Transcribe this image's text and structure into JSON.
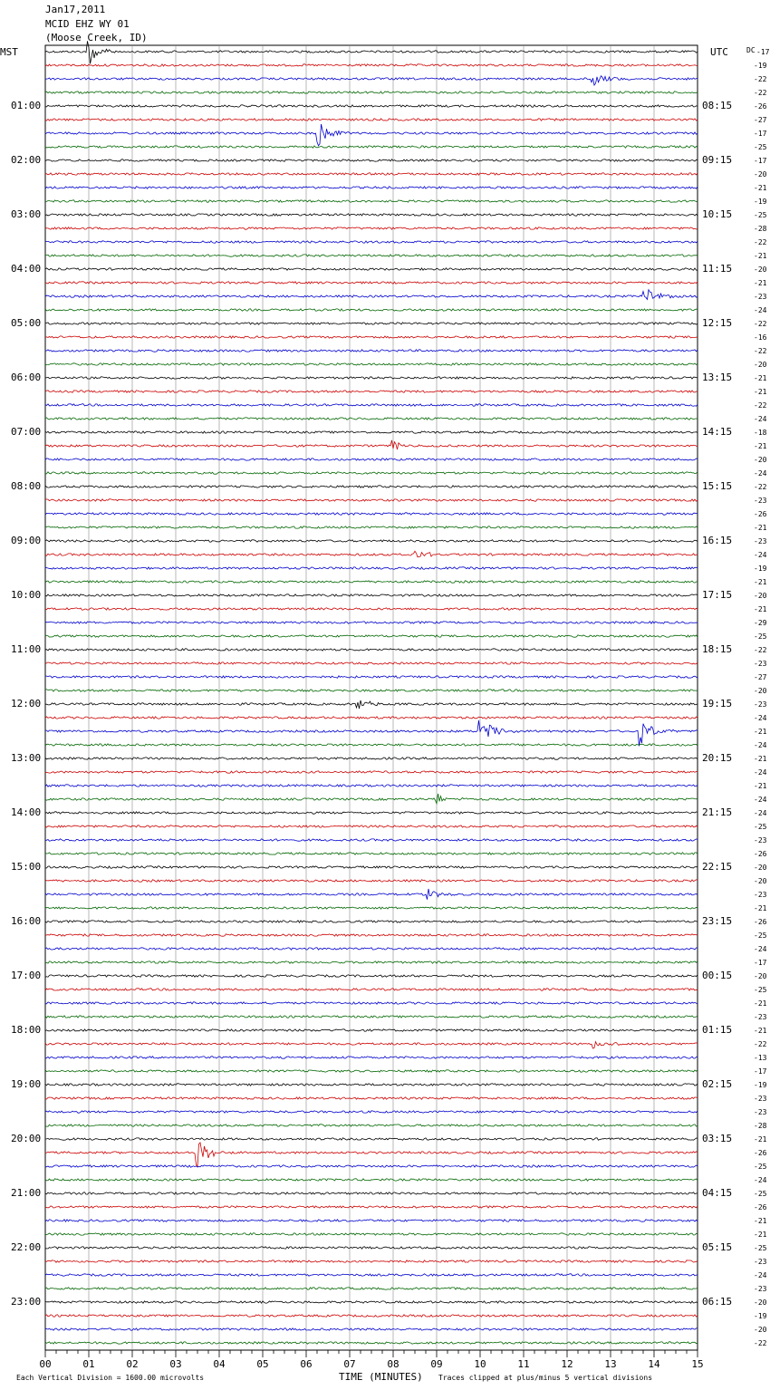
{
  "header": {
    "date": "Jan17,2011",
    "station": "MCID EHZ WY 01",
    "location": "(Moose Creek, ID)"
  },
  "left_axis_title": "MST",
  "right_axis_title": "UTC",
  "dc_title": "DC",
  "footer": {
    "scale_note": "Each Vertical Division = 1600.00 microvolts",
    "xlabel": "TIME (MINUTES)",
    "clip_note": "Traces clipped at plus/minus 5 vertical divisions"
  },
  "colors": {
    "black": "#000000",
    "red": "#cc0000",
    "blue": "#0000cc",
    "green": "#006600",
    "grid": "#888888"
  },
  "chart_data": {
    "type": "line",
    "title": "MCID EHZ WY 01",
    "xlabel": "TIME (MINUTES)",
    "xlim": [
      0,
      15
    ],
    "x_ticks": [
      "00",
      "01",
      "02",
      "03",
      "04",
      "05",
      "06",
      "07",
      "08",
      "09",
      "10",
      "11",
      "12",
      "13",
      "14",
      "15"
    ],
    "left_hour_labels": [
      "01:00",
      "02:00",
      "03:00",
      "04:00",
      "05:00",
      "06:00",
      "07:00",
      "08:00",
      "09:00",
      "10:00",
      "11:00",
      "12:00",
      "13:00",
      "14:00",
      "15:00",
      "16:00",
      "17:00",
      "18:00",
      "19:00",
      "20:00",
      "21:00",
      "22:00",
      "23:00"
    ],
    "right_hour_labels": [
      "08:15",
      "09:15",
      "10:15",
      "11:15",
      "12:15",
      "13:15",
      "14:15",
      "15:15",
      "16:15",
      "17:15",
      "18:15",
      "19:15",
      "20:15",
      "21:15",
      "22:15",
      "23:15",
      "00:15",
      "01:15",
      "02:15",
      "03:15",
      "04:15",
      "05:15",
      "06:15"
    ],
    "trace_colors": [
      "black",
      "red",
      "blue",
      "green"
    ],
    "dc_offsets": [
      -17,
      -19,
      -22,
      -22,
      -26,
      -27,
      -17,
      -25,
      -17,
      -20,
      -21,
      -19,
      -25,
      -28,
      -22,
      -21,
      -20,
      -21,
      -23,
      -24,
      -22,
      -16,
      -22,
      -20,
      -21,
      -21,
      -22,
      -24,
      -18,
      -21,
      -20,
      -24,
      -22,
      -23,
      -26,
      -21,
      -23,
      -24,
      -19,
      -21,
      -20,
      -21,
      -29,
      -25,
      -22,
      -23,
      -27,
      -20,
      -23,
      -24,
      -21,
      -24,
      -21,
      -24,
      -21,
      -24,
      -24,
      -25,
      -23,
      -26,
      -20,
      -20,
      -23,
      -21,
      -26,
      -25,
      -24,
      -17,
      -20,
      -25,
      -21,
      -23,
      -21,
      -22,
      -13,
      -17,
      -19,
      -23,
      -23,
      -28,
      -21,
      -26,
      -25,
      -24,
      -25,
      -26,
      -21,
      -21,
      -25,
      -23,
      -24,
      -23,
      -20,
      -19,
      -20,
      -22
    ],
    "events": [
      {
        "trace": 0,
        "minute": 1.0,
        "amp": "large"
      },
      {
        "trace": 2,
        "minute": 12.6,
        "amp": "medium"
      },
      {
        "trace": 6,
        "minute": 6.3,
        "amp": "large"
      },
      {
        "trace": 18,
        "minute": 13.8,
        "amp": "medium"
      },
      {
        "trace": 29,
        "minute": 8.0,
        "amp": "small"
      },
      {
        "trace": 37,
        "minute": 8.5,
        "amp": "small"
      },
      {
        "trace": 48,
        "minute": 7.2,
        "amp": "small"
      },
      {
        "trace": 50,
        "minute": 10.0,
        "amp": "large"
      },
      {
        "trace": 50,
        "minute": 13.7,
        "amp": "large"
      },
      {
        "trace": 55,
        "minute": 9.0,
        "amp": "small"
      },
      {
        "trace": 62,
        "minute": 8.8,
        "amp": "small"
      },
      {
        "trace": 73,
        "minute": 12.6,
        "amp": "small"
      },
      {
        "trace": 81,
        "minute": 3.5,
        "amp": "large"
      }
    ]
  }
}
